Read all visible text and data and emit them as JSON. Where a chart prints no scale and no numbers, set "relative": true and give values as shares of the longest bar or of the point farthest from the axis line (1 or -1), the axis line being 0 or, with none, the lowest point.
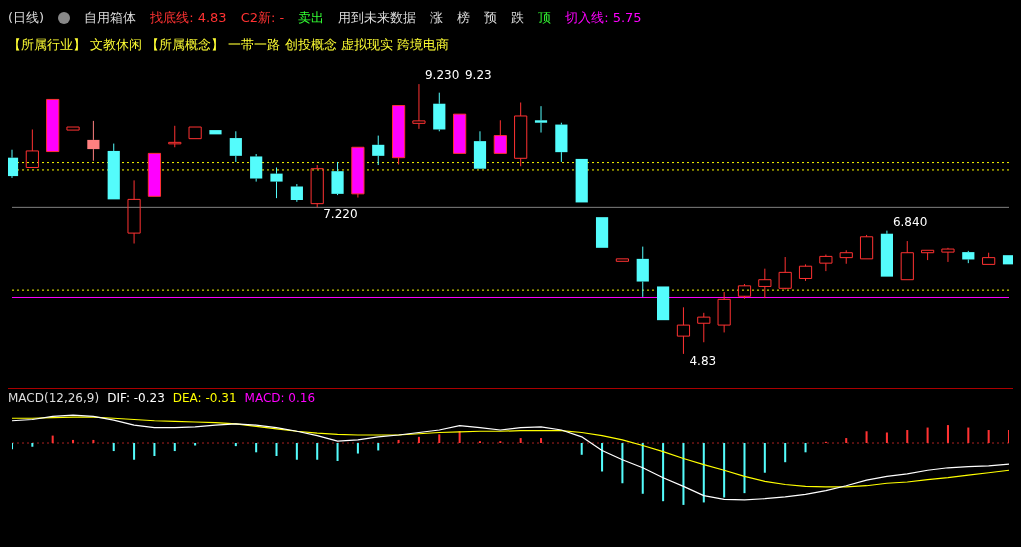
{
  "chart_data": [
    {
      "type": "candlestick",
      "title": "(日线)",
      "subtitle": "【所属行业】 文教休闲 【所属概念】 一带一路 创投概念 虚拟现实 跨境电商",
      "categories": [
        null,
        null,
        null,
        null,
        null,
        null,
        null,
        null,
        null,
        null,
        null,
        null,
        null,
        null,
        null,
        null,
        null,
        null,
        null,
        null,
        null,
        null,
        null,
        null,
        null,
        null,
        null,
        null,
        null,
        null,
        null,
        null,
        null,
        null,
        null,
        null,
        null,
        null,
        null,
        null,
        null,
        null,
        null,
        null,
        null,
        null,
        null,
        null,
        null,
        null
      ],
      "ohlc": [
        [
          8.03,
          8.16,
          7.7,
          7.73
        ],
        [
          7.87,
          8.49,
          7.87,
          8.14
        ],
        [
          8.13,
          8.98,
          8.13,
          8.98
        ],
        [
          8.48,
          8.53,
          8.48,
          8.53
        ],
        [
          8.32,
          8.63,
          7.98,
          8.17
        ],
        [
          8.14,
          8.26,
          7.35,
          7.35
        ],
        [
          6.8,
          7.66,
          6.63,
          7.35
        ],
        [
          7.4,
          8.1,
          7.4,
          8.1
        ],
        [
          8.26,
          8.55,
          8.2,
          8.28
        ],
        [
          8.34,
          8.53,
          8.34,
          8.53
        ],
        [
          8.48,
          8.48,
          8.41,
          8.41
        ],
        [
          8.35,
          8.46,
          7.96,
          8.06
        ],
        [
          8.05,
          8.09,
          7.64,
          7.69
        ],
        [
          7.77,
          7.87,
          7.37,
          7.64
        ],
        [
          7.56,
          7.6,
          7.31,
          7.34
        ],
        [
          7.28,
          7.91,
          7.22,
          7.85
        ],
        [
          7.81,
          7.96,
          7.42,
          7.44
        ],
        [
          7.44,
          8.2,
          7.38,
          8.2
        ],
        [
          8.24,
          8.39,
          7.91,
          8.06
        ],
        [
          8.03,
          8.88,
          7.92,
          8.88
        ],
        [
          8.59,
          9.23,
          8.5,
          8.63
        ],
        [
          8.91,
          9.09,
          8.46,
          8.49
        ],
        [
          8.1,
          8.74,
          8.1,
          8.74
        ],
        [
          8.3,
          8.46,
          7.85,
          7.85
        ],
        [
          8.1,
          8.64,
          8.1,
          8.39
        ],
        [
          8.02,
          8.93,
          7.89,
          8.71
        ],
        [
          8.64,
          8.87,
          8.44,
          8.6
        ],
        [
          8.57,
          8.6,
          7.96,
          8.12
        ],
        [
          8.01,
          8.01,
          7.3,
          7.3
        ],
        [
          7.06,
          7.06,
          6.56,
          6.56
        ],
        [
          6.34,
          6.38,
          6.34,
          6.38
        ],
        [
          6.38,
          6.58,
          5.76,
          6.01
        ],
        [
          5.93,
          5.93,
          5.38,
          5.38
        ],
        [
          5.12,
          5.59,
          4.83,
          5.3
        ],
        [
          5.33,
          5.5,
          5.02,
          5.43
        ],
        [
          5.3,
          5.84,
          5.18,
          5.72
        ],
        [
          5.77,
          5.97,
          5.73,
          5.94
        ],
        [
          5.93,
          6.22,
          5.74,
          6.04
        ],
        [
          5.9,
          6.41,
          5.88,
          6.16
        ],
        [
          6.06,
          6.29,
          6.02,
          6.26
        ],
        [
          6.31,
          6.45,
          6.18,
          6.42
        ],
        [
          6.4,
          6.52,
          6.3,
          6.48
        ],
        [
          6.38,
          6.77,
          6.38,
          6.74
        ],
        [
          6.79,
          6.84,
          6.09,
          6.09
        ],
        [
          6.04,
          6.67,
          6.04,
          6.48
        ],
        [
          6.48,
          6.52,
          6.36,
          6.52
        ],
        [
          6.49,
          6.56,
          6.33,
          6.54
        ],
        [
          6.49,
          6.51,
          6.31,
          6.37
        ],
        [
          6.29,
          6.48,
          6.29,
          6.4
        ],
        [
          6.44,
          6.44,
          6.29,
          6.29
        ]
      ],
      "colors": [
        "#54fcfc",
        "#ff3232",
        "#ff00ff",
        "#ff3232",
        "#ff8080",
        "#54fcfc",
        "#ff3232",
        "#ff00ff",
        "#ff3232",
        "#ff3232",
        "#54fcfc",
        "#54fcfc",
        "#54fcfc",
        "#54fcfc",
        "#54fcfc",
        "#ff3232",
        "#54fcfc",
        "#ff00ff",
        "#54fcfc",
        "#ff00ff",
        "#ff3232",
        "#54fcfc",
        "#ff00ff",
        "#54fcfc",
        "#ff00ff",
        "#ff3232",
        "#54fcfc",
        "#54fcfc",
        "#54fcfc",
        "#54fcfc",
        "#ff3232",
        "#54fcfc",
        "#54fcfc",
        "#ff3232",
        "#ff3232",
        "#ff3232",
        "#ff3232",
        "#ff3232",
        "#ff3232",
        "#ff3232",
        "#ff3232",
        "#ff3232",
        "#ff3232",
        "#54fcfc",
        "#ff3232",
        "#ff3232",
        "#ff3232",
        "#54fcfc",
        "#ff3232",
        "#54fcfc"
      ],
      "ref_lines": [
        {
          "axis": "y",
          "value": 5.75,
          "label": "切入线: 5.75",
          "color": "#ff00ff",
          "line_style": "solid"
        },
        {
          "axis": "y",
          "value": 7.95,
          "color": "#ffff00",
          "line_style": "dotted"
        },
        {
          "axis": "y",
          "value": 7.83,
          "color": "#ffff00",
          "line_style": "dotted"
        },
        {
          "axis": "y",
          "value": 5.87,
          "color": "#ffff00",
          "line_style": "dotted"
        },
        {
          "axis": "y",
          "value": 7.22,
          "color": "#808080",
          "line_style": "solid"
        }
      ],
      "annotations": [
        "自用箱体",
        "找底线: 4.83",
        "C2新: -",
        "卖出",
        "用到未来数据",
        "涨",
        "榜",
        "预",
        "跌",
        "9.230",
        "9.23",
        "顶",
        "7.220",
        "6.840",
        "4.83"
      ]
    },
    {
      "type": "bar",
      "title": "MACD(12,26,9)",
      "relative": true,
      "legend": "top left",
      "annotations": [
        "MACD: 0.16"
      ],
      "ref_lines": [
        {
          "axis": "y",
          "value": 0,
          "color": "#aa2222",
          "line_style": "dotted"
        }
      ],
      "categories": [
        null,
        null,
        null,
        null,
        null,
        null,
        null,
        null,
        null,
        null,
        null,
        null,
        null,
        null,
        null,
        null,
        null,
        null,
        null,
        null,
        null,
        null,
        null,
        null,
        null,
        null,
        null,
        null,
        null,
        null,
        null,
        null,
        null,
        null,
        null,
        null,
        null,
        null,
        null,
        null,
        null,
        null,
        null,
        null,
        null,
        null,
        null,
        null,
        null,
        null
      ],
      "series": [
        {
          "name": "DIF: -0.23",
          "type": "line",
          "color": "#ffffff",
          "values": [
            0.36,
            0.38,
            0.43,
            0.45,
            0.43,
            0.37,
            0.29,
            0.25,
            0.25,
            0.26,
            0.29,
            0.31,
            0.29,
            0.25,
            0.19,
            0.12,
            0.03,
            0.05,
            0.1,
            0.13,
            0.17,
            0.21,
            0.28,
            0.25,
            0.21,
            0.25,
            0.26,
            0.21,
            0.1,
            -0.12,
            -0.27,
            -0.4,
            -0.56,
            -0.7,
            -0.85,
            -0.91,
            -0.92,
            -0.9,
            -0.87,
            -0.83,
            -0.77,
            -0.69,
            -0.6,
            -0.54,
            -0.5,
            -0.44,
            -0.4,
            -0.38,
            -0.37,
            -0.34
          ]
        },
        {
          "name": "DEA: -0.31",
          "type": "line",
          "color": "#ffff00",
          "values": [
            0.4,
            0.4,
            0.41,
            0.42,
            0.42,
            0.4,
            0.38,
            0.36,
            0.35,
            0.34,
            0.33,
            0.31,
            0.27,
            0.23,
            0.19,
            0.16,
            0.14,
            0.13,
            0.13,
            0.13,
            0.15,
            0.17,
            0.18,
            0.19,
            0.19,
            0.2,
            0.2,
            0.2,
            0.17,
            0.12,
            0.05,
            -0.04,
            -0.14,
            -0.25,
            -0.35,
            -0.44,
            -0.54,
            -0.62,
            -0.67,
            -0.7,
            -0.71,
            -0.71,
            -0.69,
            -0.65,
            -0.63,
            -0.59,
            -0.56,
            -0.52,
            -0.48,
            -0.44
          ]
        },
        {
          "type": "bar",
          "values": [
            -0.1,
            -0.06,
            0.12,
            0.05,
            0.05,
            -0.13,
            -0.27,
            -0.21,
            -0.13,
            -0.04,
            0,
            -0.05,
            -0.15,
            -0.21,
            -0.27,
            -0.27,
            -0.29,
            -0.17,
            -0.12,
            0.05,
            0.1,
            0.14,
            0.19,
            0.03,
            0.03,
            0.08,
            0.08,
            0,
            -0.19,
            -0.46,
            -0.65,
            -0.82,
            -0.94,
            -1,
            -0.96,
            -0.88,
            -0.81,
            -0.48,
            -0.31,
            -0.15,
            0.02,
            0.08,
            0.19,
            0.17,
            0.21,
            0.25,
            0.29,
            0.25,
            0.21,
            0.21
          ],
          "colors": [
            "#54fcfc",
            "#54fcfc",
            "#ff3232",
            "#ff3232",
            "#ff3232",
            "#54fcfc",
            "#54fcfc",
            "#54fcfc",
            "#54fcfc",
            "#54fcfc",
            "#54fcfc",
            "#54fcfc",
            "#54fcfc",
            "#54fcfc",
            "#54fcfc",
            "#54fcfc",
            "#54fcfc",
            "#54fcfc",
            "#54fcfc",
            "#ff3232",
            "#ff3232",
            "#ff3232",
            "#ff3232",
            "#ff3232",
            "#ff3232",
            "#ff3232",
            "#ff3232",
            "#ff3232",
            "#54fcfc",
            "#54fcfc",
            "#54fcfc",
            "#54fcfc",
            "#54fcfc",
            "#54fcfc",
            "#54fcfc",
            "#54fcfc",
            "#54fcfc",
            "#54fcfc",
            "#54fcfc",
            "#54fcfc",
            "#ff3232",
            "#ff3232",
            "#ff3232",
            "#ff3232",
            "#ff3232",
            "#ff3232",
            "#ff3232",
            "#ff3232",
            "#ff3232",
            "#ff3232"
          ]
        }
      ]
    }
  ]
}
